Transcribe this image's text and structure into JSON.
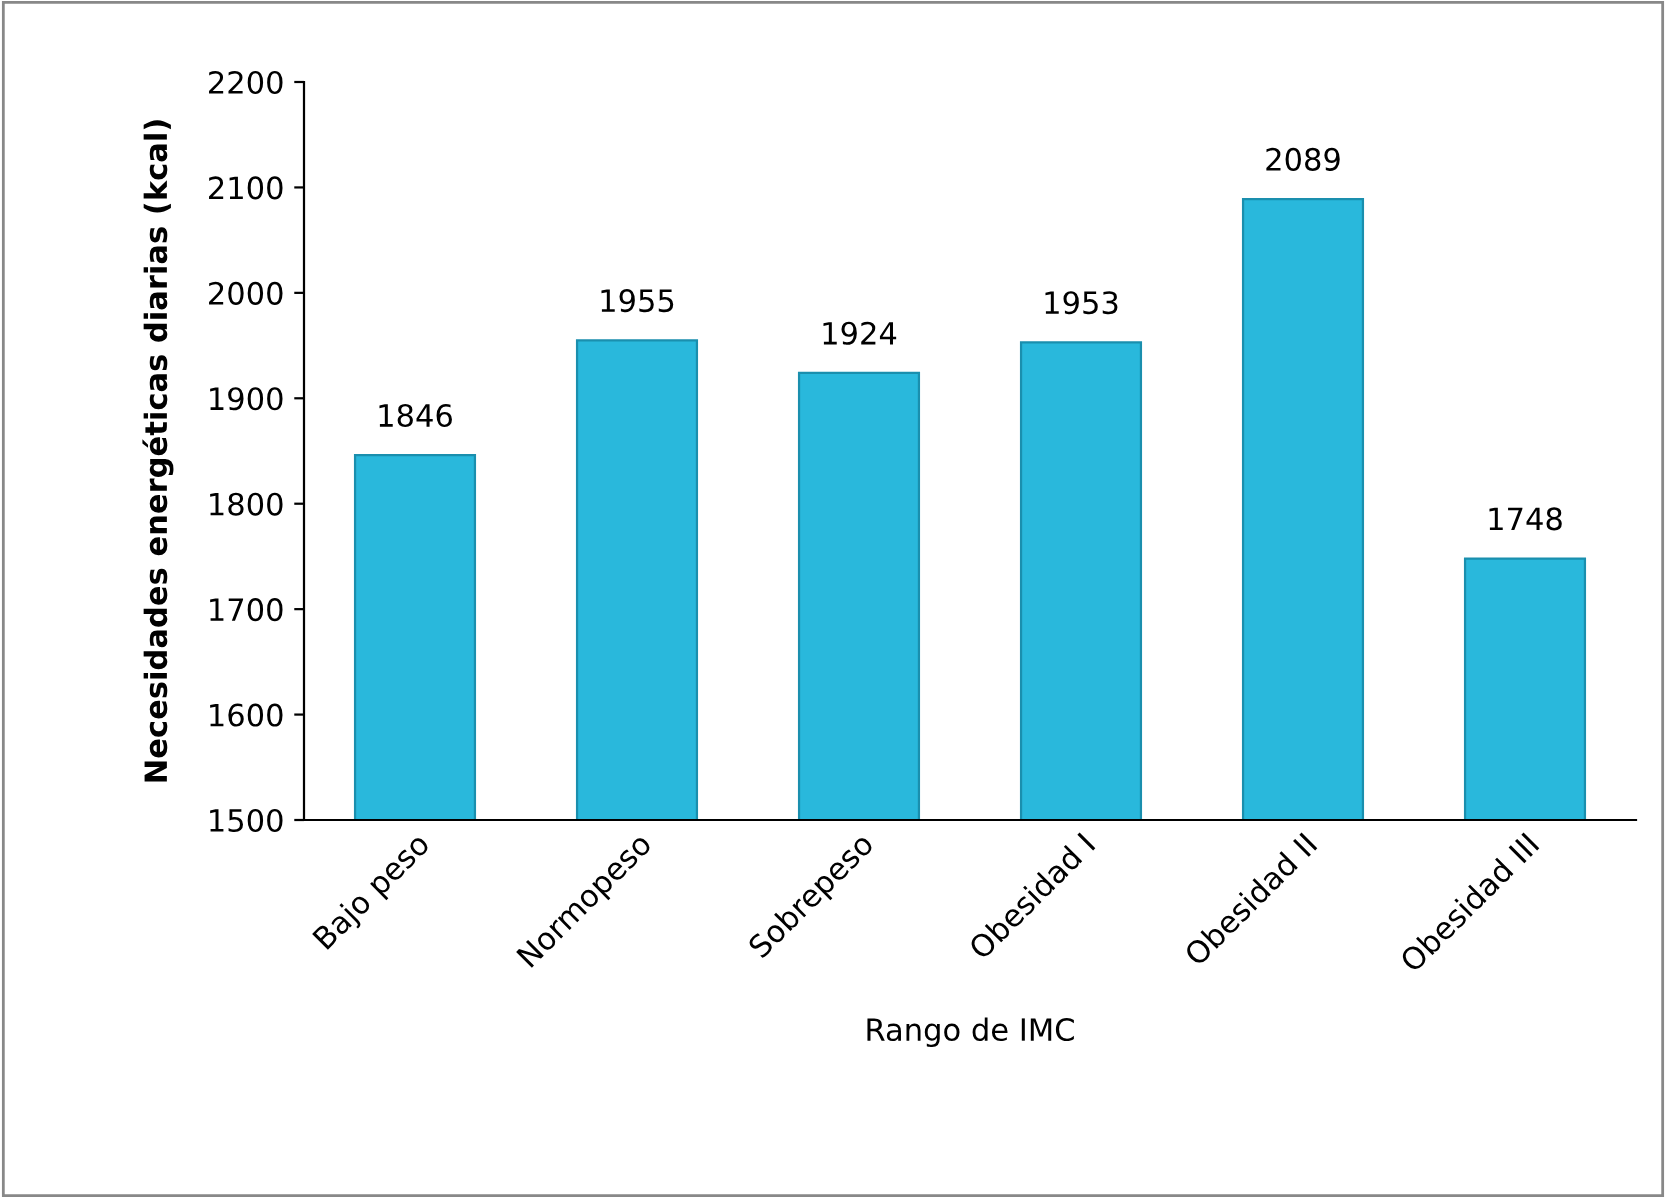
{
  "chart_data": {
    "type": "bar",
    "xlabel": "Rango de IMC",
    "ylabel": "Necesidades energéticas diarias (kcal)",
    "categories": [
      "Bajo peso",
      "Normopeso",
      "Sobrepeso",
      "Obesidad I",
      "Obesidad II",
      "Obesidad III"
    ],
    "values": [
      1846,
      1955,
      1924,
      1953,
      2089,
      1748
    ],
    "color": "#29b8dc",
    "ylim": [
      1500,
      2200
    ],
    "yticks": [
      1500,
      1600,
      1700,
      1800,
      1900,
      2000,
      2100,
      2200
    ],
    "grid": false,
    "data_labels": true
  }
}
